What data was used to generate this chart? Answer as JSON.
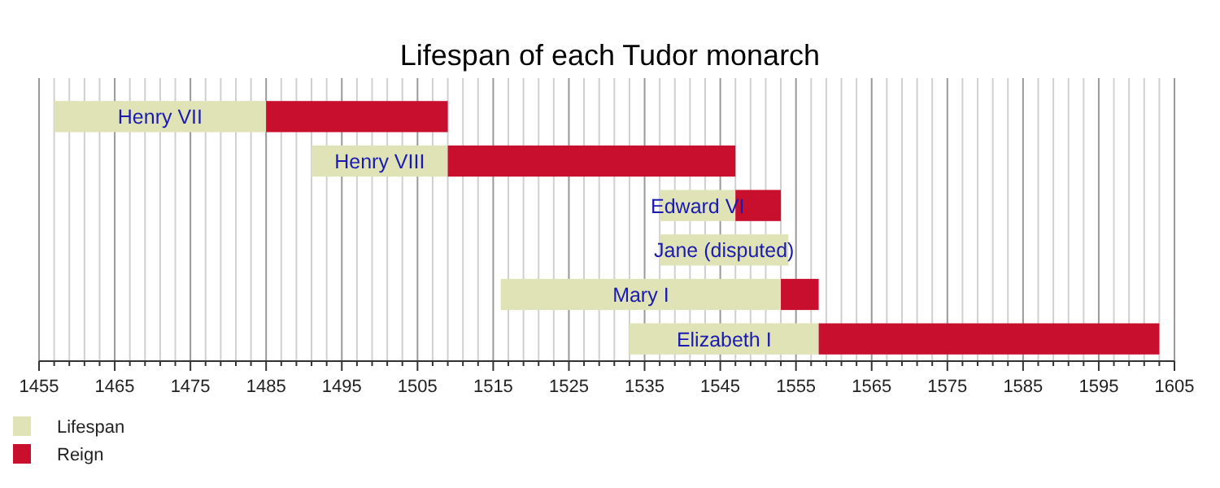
{
  "chart_data": {
    "type": "bar",
    "orientation": "horizontal",
    "title": "Lifespan of each Tudor monarch",
    "categories": [
      "Henry VII",
      "Henry VIII",
      "Edward VI",
      "Jane (disputed)",
      "Mary I",
      "Elizabeth I"
    ],
    "series": [
      {
        "name": "Lifespan",
        "color": "#dfe3b5",
        "base": [
          1457,
          1491,
          1537,
          1537,
          1516,
          1533
        ],
        "values": [
          28,
          18,
          10,
          17,
          37,
          25
        ]
      },
      {
        "name": "Reign",
        "color": "#c8102e",
        "base": [
          1485,
          1509,
          1547,
          null,
          1553,
          1558
        ],
        "values": [
          24,
          38,
          6,
          null,
          5,
          45
        ]
      }
    ],
    "xlim": [
      1455,
      1605
    ],
    "xticks": [
      1455,
      {
        "value": 1457,
        "label": null
      },
      {
        "value": 1459,
        "label": null
      },
      {
        "value": 1461,
        "label": null
      },
      {
        "value": 1463,
        "label": null
      },
      1465,
      {
        "value": 1467,
        "label": null
      },
      {
        "value": 1469,
        "label": null
      },
      {
        "value": 1471,
        "label": null
      },
      {
        "value": 1473,
        "label": null
      },
      1475,
      {
        "value": 1477,
        "label": null
      },
      {
        "value": 1479,
        "label": null
      },
      {
        "value": 1481,
        "label": null
      },
      {
        "value": 1483,
        "label": null
      },
      1485,
      {
        "value": 1487,
        "label": null
      },
      {
        "value": 1489,
        "label": null
      },
      {
        "value": 1491,
        "label": null
      },
      {
        "value": 1493,
        "label": null
      },
      1495,
      {
        "value": 1497,
        "label": null
      },
      {
        "value": 1499,
        "label": null
      },
      {
        "value": 1501,
        "label": null
      },
      {
        "value": 1503,
        "label": null
      },
      1505,
      {
        "value": 1507,
        "label": null
      },
      {
        "value": 1509,
        "label": null
      },
      {
        "value": 1511,
        "label": null
      },
      {
        "value": 1513,
        "label": null
      },
      1515,
      {
        "value": 1517,
        "label": null
      },
      {
        "value": 1519,
        "label": null
      },
      {
        "value": 1521,
        "label": null
      },
      {
        "value": 1523,
        "label": null
      },
      1525,
      {
        "value": 1527,
        "label": null
      },
      {
        "value": 1529,
        "label": null
      },
      {
        "value": 1531,
        "label": null
      },
      {
        "value": 1533,
        "label": null
      },
      1535,
      {
        "value": 1537,
        "label": null
      },
      {
        "value": 1539,
        "label": null
      },
      {
        "value": 1541,
        "label": null
      },
      {
        "value": 1543,
        "label": null
      },
      1545,
      {
        "value": 1547,
        "label": null
      },
      {
        "value": 1549,
        "label": null
      },
      {
        "value": 1551,
        "label": null
      },
      {
        "value": 1553,
        "label": null
      },
      1555,
      {
        "value": 1557,
        "label": null
      },
      {
        "value": 1559,
        "label": null
      },
      {
        "value": 1561,
        "label": null
      },
      {
        "value": 1563,
        "label": null
      },
      1565,
      {
        "value": 1567,
        "label": null
      },
      {
        "value": 1569,
        "label": null
      },
      {
        "value": 1571,
        "label": null
      },
      {
        "value": 1573,
        "label": null
      },
      1575,
      {
        "value": 1577,
        "label": null
      },
      {
        "value": 1579,
        "label": null
      },
      {
        "value": 1581,
        "label": null
      },
      {
        "value": 1583,
        "label": null
      },
      1585,
      {
        "value": 1587,
        "label": null
      },
      {
        "value": 1589,
        "label": null
      },
      {
        "value": 1591,
        "label": null
      },
      {
        "value": 1593,
        "label": null
      },
      1595,
      {
        "value": 1597,
        "label": null
      },
      {
        "value": 1599,
        "label": null
      },
      {
        "value": 1601,
        "label": null
      },
      {
        "value": 1603,
        "label": null
      },
      1605
    ],
    "grid": "x",
    "legend": "bottom left"
  }
}
